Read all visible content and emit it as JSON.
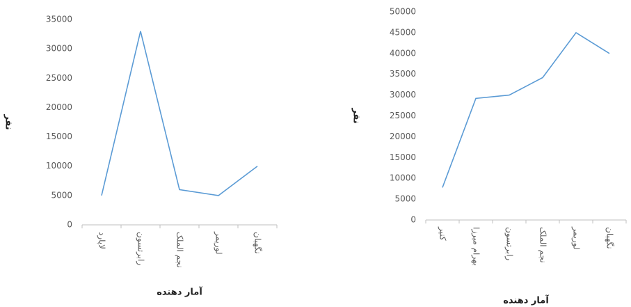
{
  "chart_data": [
    {
      "type": "line",
      "y_label": "نفر",
      "x_label": "آمار دهنده",
      "categories": [
        "لاپارد",
        "رابرتسون",
        "نجم الملک",
        "لوریمر",
        "نگهبان"
      ],
      "series": [
        {
          "name": null,
          "color": "#5b9bd5",
          "values": [
            5000,
            33000,
            6000,
            5000,
            10000
          ]
        }
      ],
      "ylim": [
        0,
        35000
      ],
      "yticks": [
        0,
        5000,
        10000,
        15000,
        20000,
        25000,
        30000,
        35000
      ],
      "grid": false
    },
    {
      "type": "line",
      "y_label": "نفر",
      "x_label": "آمار دهنده",
      "categories": [
        "کنیر",
        "بهرام میرزا",
        "رابرتسون",
        "نجم الملک",
        "لوریمر",
        "نگهبان"
      ],
      "series": [
        {
          "name": null,
          "color": "#5b9bd5",
          "values": [
            7800,
            29200,
            30000,
            34200,
            45000,
            40000
          ]
        }
      ],
      "ylim": [
        0,
        50000
      ],
      "yticks": [
        0,
        5000,
        10000,
        15000,
        20000,
        25000,
        30000,
        35000,
        40000,
        45000,
        50000
      ],
      "grid": false
    }
  ]
}
